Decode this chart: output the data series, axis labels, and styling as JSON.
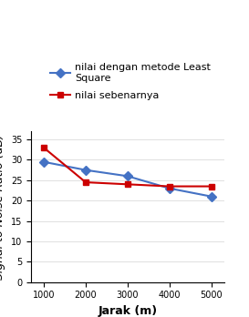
{
  "x": [
    1000,
    2000,
    3000,
    4000,
    5000
  ],
  "y_least_square": [
    29.5,
    27.5,
    26.0,
    23.0,
    21.0
  ],
  "y_sebenarnya": [
    33.0,
    24.5,
    24.0,
    23.5,
    23.5
  ],
  "color_ls": "#4472C4",
  "color_seb": "#CC0000",
  "marker_ls": "D",
  "marker_seb": "s",
  "label_ls": "nilai dengan metode Least\nSquare",
  "label_seb": "nilai sebenarnya",
  "xlabel": "Jarak (m)",
  "ylabel": "Signal to Noise Ratio (dB)",
  "xlim": [
    700,
    5300
  ],
  "ylim": [
    0,
    37
  ],
  "yticks": [
    0,
    5,
    10,
    15,
    20,
    25,
    30,
    35
  ],
  "xticks": [
    1000,
    2000,
    3000,
    4000,
    5000
  ],
  "axis_label_fontsize": 9,
  "tick_fontsize": 7,
  "legend_fontsize": 8,
  "background_color": "#FFFFFF"
}
